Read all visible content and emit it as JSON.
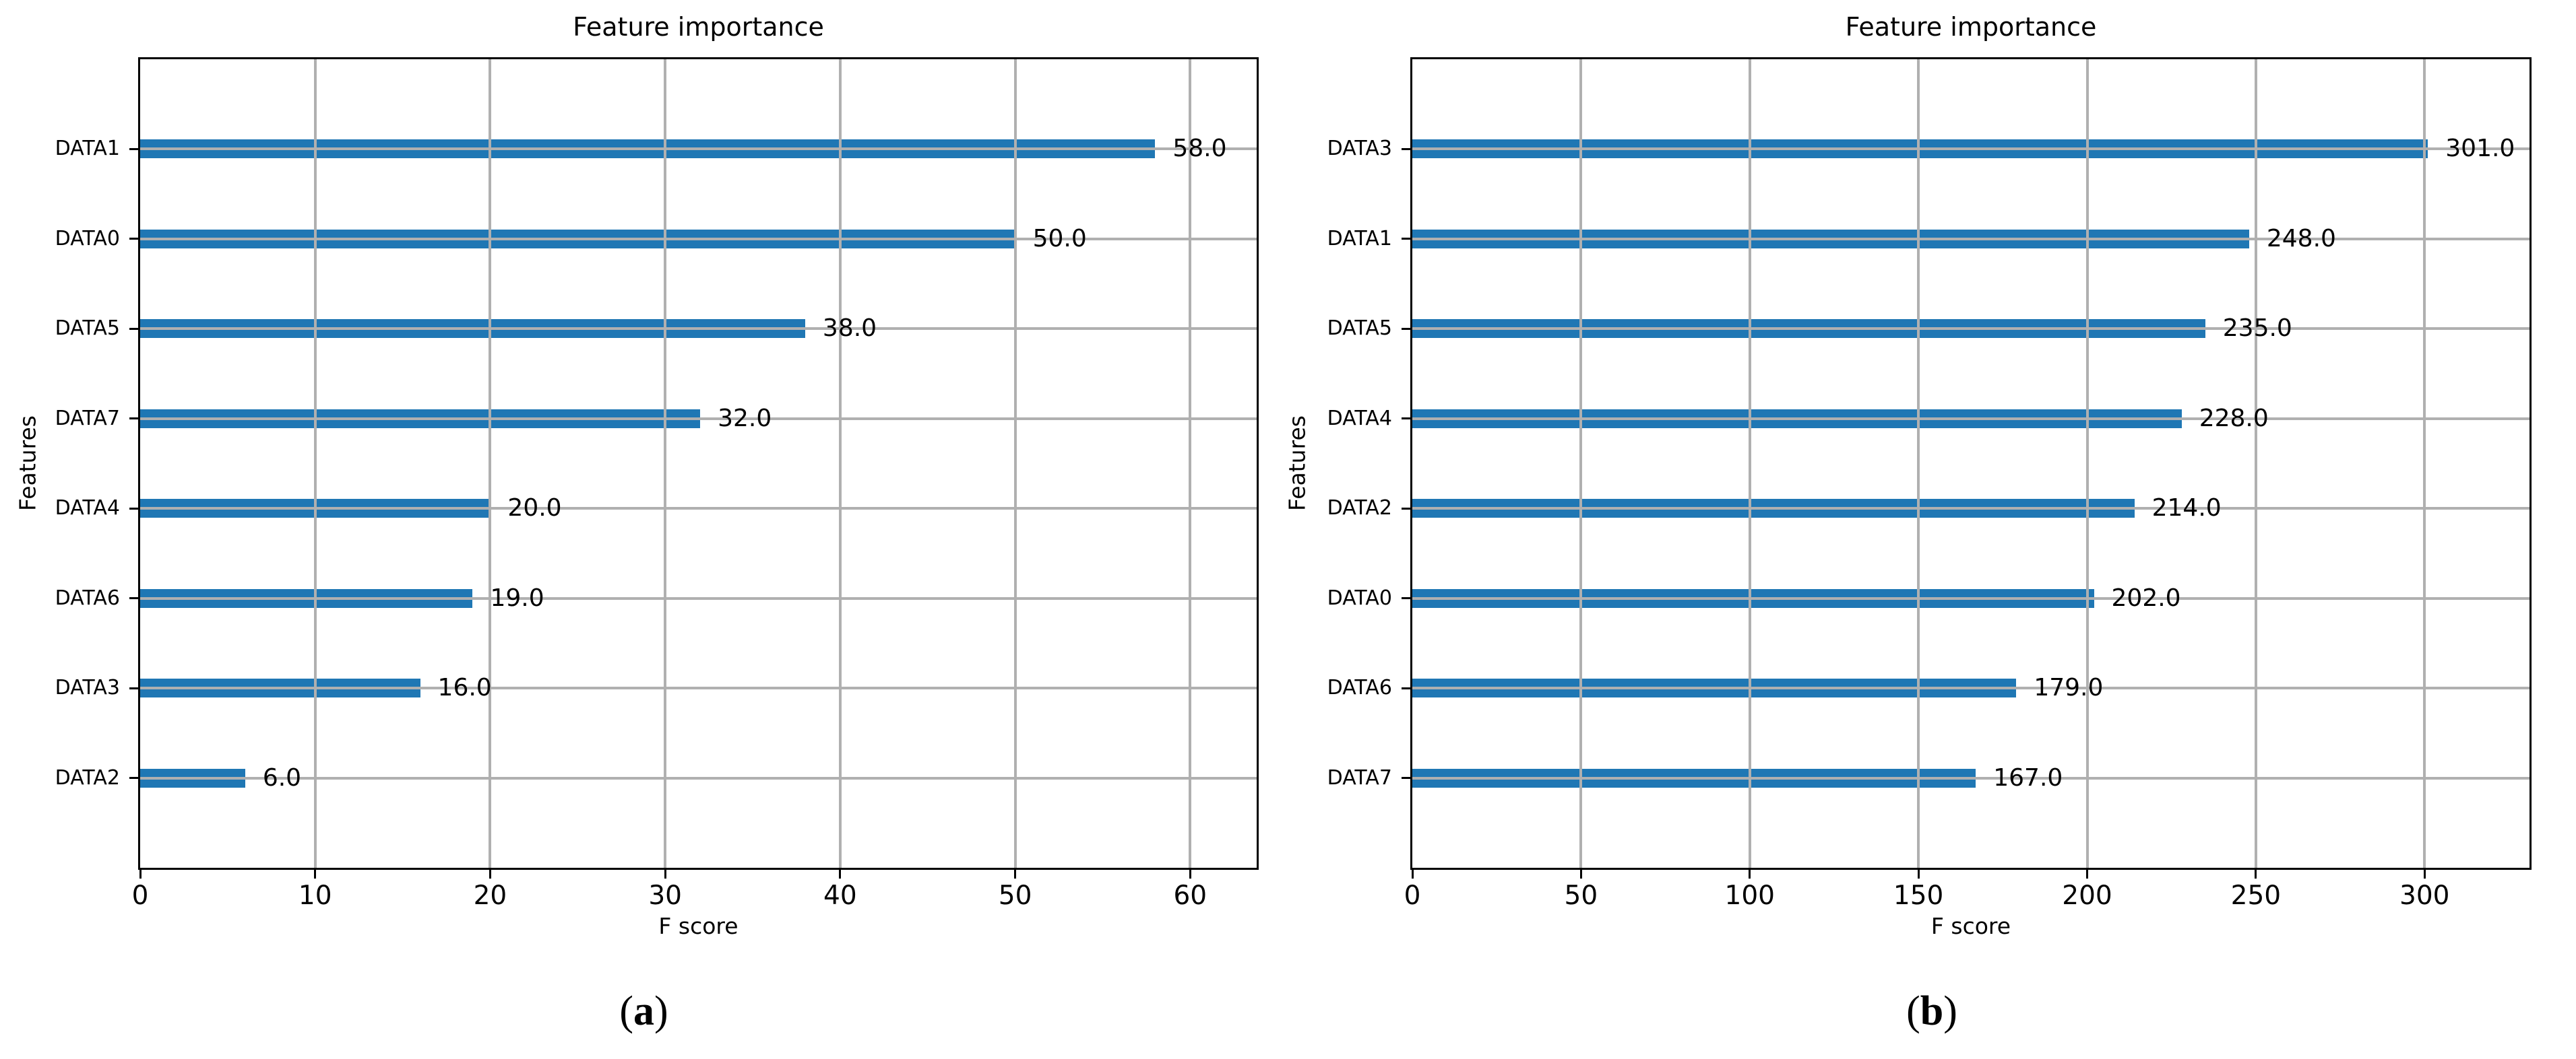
{
  "figure": {
    "description": "Two horizontal bar charts of feature importance (F score) side by side"
  },
  "chart_data": [
    {
      "type": "bar",
      "orientation": "horizontal",
      "title": "Feature importance",
      "xlabel": "F score",
      "ylabel": "Features",
      "caption_prefix": "(",
      "caption_letter": "a",
      "caption_suffix": ")",
      "categories": [
        "DATA1",
        "DATA0",
        "DATA5",
        "DATA7",
        "DATA4",
        "DATA6",
        "DATA3",
        "DATA2"
      ],
      "values": [
        58.0,
        50.0,
        38.0,
        32.0,
        20.0,
        19.0,
        16.0,
        6.0
      ],
      "bar_value_labels": [
        "58.0",
        "50.0",
        "38.0",
        "32.0",
        "20.0",
        "19.0",
        "16.0",
        "6.0"
      ],
      "xticks": [
        0,
        10,
        20,
        30,
        40,
        50,
        60
      ],
      "xlim": [
        0,
        63.8
      ],
      "grid": true,
      "legend_position": "none",
      "colors": {
        "bar": "#1f77b4",
        "grid": "#b0b0b0",
        "spine": "#000000",
        "text": "#000000"
      }
    },
    {
      "type": "bar",
      "orientation": "horizontal",
      "title": "Feature importance",
      "xlabel": "F score",
      "ylabel": "Features",
      "caption_prefix": "(",
      "caption_letter": "b",
      "caption_suffix": ")",
      "categories": [
        "DATA3",
        "DATA1",
        "DATA5",
        "DATA4",
        "DATA2",
        "DATA0",
        "DATA6",
        "DATA7"
      ],
      "values": [
        301.0,
        248.0,
        235.0,
        228.0,
        214.0,
        202.0,
        179.0,
        167.0
      ],
      "bar_value_labels": [
        "301.0",
        "248.0",
        "235.0",
        "228.0",
        "214.0",
        "202.0",
        "179.0",
        "167.0"
      ],
      "xticks": [
        0,
        50,
        100,
        150,
        200,
        250,
        300
      ],
      "xlim": [
        0,
        331.1
      ],
      "grid": true,
      "legend_position": "none",
      "colors": {
        "bar": "#1f77b4",
        "grid": "#b0b0b0",
        "spine": "#000000",
        "text": "#000000"
      }
    }
  ]
}
